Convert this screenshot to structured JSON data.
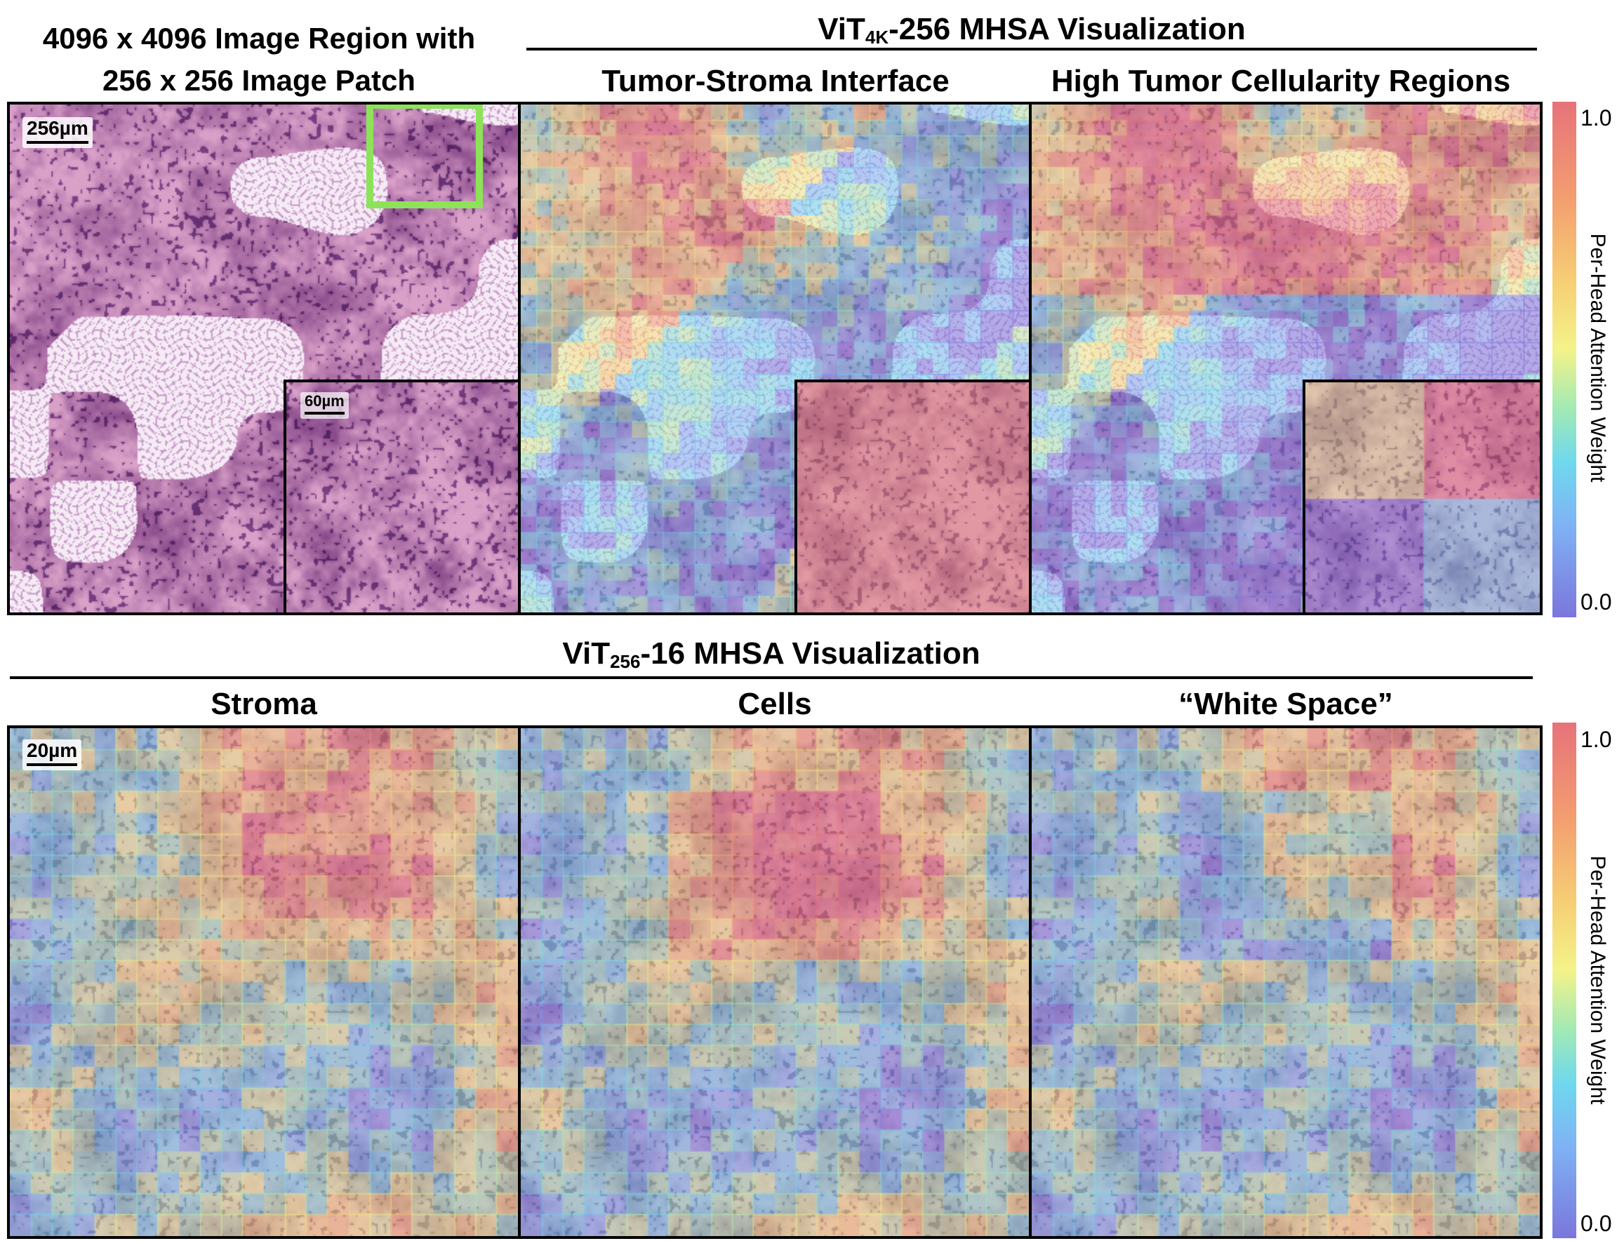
{
  "top": {
    "left_title_line1": "4096 x 4096 Image Region with",
    "left_title_line2": "256 x 256 Image Patch",
    "vit_prefix": "ViT",
    "vit_sub": "4K",
    "vit_suffix": "-256 MHSA Visualization",
    "panel_titles": [
      "Tumor-Stroma Interface",
      "High Tumor Cellularity Regions"
    ],
    "scale_main": "256µm",
    "scale_inset": "60µm"
  },
  "bottom": {
    "vit_prefix": "ViT",
    "vit_sub": "256",
    "vit_suffix": "-16 MHSA Visualization",
    "panel_titles": [
      "Stroma",
      "Cells",
      "“White Space”"
    ],
    "scale_main": "20µm"
  },
  "colorbar": {
    "label": "Per-Head Attention Weight",
    "max_tick": "1.0",
    "min_tick": "0.0",
    "colors": [
      "#e6737a",
      "#f39c70",
      "#f6cf74",
      "#f4f389",
      "#9fe9b6",
      "#6fd8ee",
      "#7fb3f4",
      "#7b76dc"
    ]
  },
  "colors": {
    "highlight_box": "#8ce35a",
    "tissue_pink": "#d9a0c8",
    "tissue_purple": "#8b4c8c"
  }
}
